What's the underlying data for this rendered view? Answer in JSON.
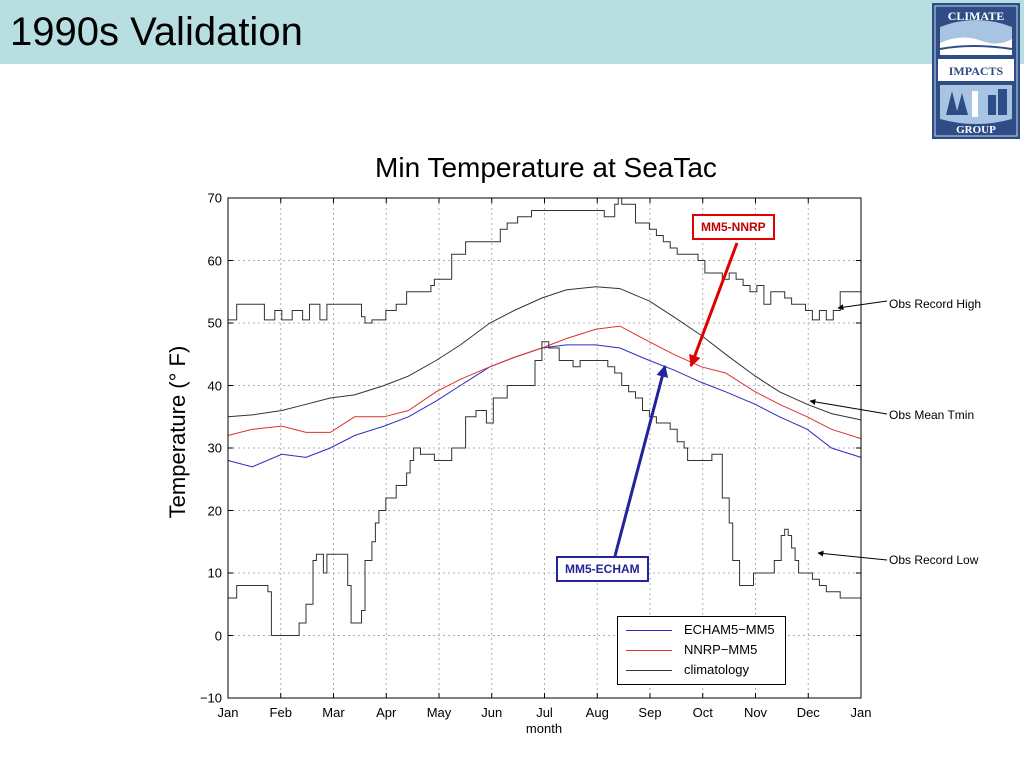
{
  "slide": {
    "title": "1990s Validation"
  },
  "logo": {
    "top_text": "CLIMATE",
    "mid_text": "IMPACTS",
    "bottom_text": "GROUP"
  },
  "chart_data": {
    "type": "line",
    "title": "Min Temperature at SeaTac",
    "xlabel": "month",
    "ylabel": "Temperature (°  F)",
    "x_ticks": [
      "Jan",
      "Feb",
      "Mar",
      "Apr",
      "May",
      "Jun",
      "Jul",
      "Aug",
      "Sep",
      "Oct",
      "Nov",
      "Dec",
      "Jan"
    ],
    "y_ticks": [
      "70",
      "60",
      "50",
      "40",
      "30",
      "20",
      "10",
      "0",
      "−10"
    ],
    "ylim": [
      -10,
      70
    ],
    "xlim": [
      1,
      366
    ],
    "grid": true,
    "legend_position": "bottom-right",
    "series": [
      {
        "name": "ECHAM5−MM5",
        "color": "#2c2cc0",
        "x": [
          1,
          15,
          32,
          46,
          60,
          74,
          91,
          105,
          121,
          135,
          152,
          166,
          182,
          196,
          213,
          227,
          244,
          258,
          274,
          288,
          305,
          319,
          335,
          349,
          366
        ],
        "y": [
          28,
          27,
          29,
          28.5,
          30,
          32,
          33.5,
          35,
          37.5,
          40,
          43,
          44.5,
          46,
          46.5,
          46.5,
          46,
          44,
          42.5,
          40.5,
          39,
          37,
          35,
          33,
          30,
          28.5
        ]
      },
      {
        "name": "NNRP−MM5",
        "color": "#e03030",
        "x": [
          1,
          15,
          32,
          46,
          60,
          74,
          91,
          105,
          121,
          135,
          152,
          166,
          182,
          196,
          213,
          227,
          244,
          258,
          274,
          288,
          305,
          319,
          335,
          349,
          366
        ],
        "y": [
          32,
          33,
          33.5,
          32.5,
          32.5,
          35,
          35,
          36,
          39,
          41,
          43,
          44.5,
          46,
          47.5,
          49,
          49.5,
          47,
          45,
          43,
          42,
          39,
          37,
          35,
          33,
          31.5
        ]
      },
      {
        "name": "climatology",
        "color": "#333333",
        "x": [
          1,
          15,
          32,
          46,
          60,
          74,
          91,
          105,
          121,
          135,
          152,
          166,
          182,
          196,
          213,
          227,
          244,
          258,
          274,
          288,
          305,
          319,
          335,
          349,
          366
        ],
        "y": [
          35,
          35.3,
          36,
          37,
          38,
          38.5,
          40,
          41.5,
          44,
          46.5,
          50,
          52,
          54,
          55.3,
          55.8,
          55.5,
          53.5,
          51,
          48,
          45,
          41.5,
          39,
          37,
          35.5,
          34.5
        ]
      },
      {
        "name": "Obs Record High",
        "color": "#333333",
        "x": [
          1,
          6,
          12,
          22,
          24,
          28,
          32,
          38,
          44,
          48,
          54,
          58,
          74,
          78,
          80,
          84,
          92,
          98,
          104,
          108,
          118,
          120,
          130,
          134,
          138,
          140,
          158,
          162,
          168,
          172,
          176,
          180,
          184,
          200,
          218,
          224,
          226,
          228,
          236,
          240,
          244,
          248,
          252,
          256,
          260,
          264,
          268,
          272,
          276,
          286,
          290,
          294,
          298,
          302,
          306,
          310,
          314,
          318,
          322,
          326,
          330,
          334,
          338,
          342,
          346,
          350,
          354,
          358,
          366
        ],
        "y": [
          50.5,
          53,
          53,
          50.5,
          50.5,
          52,
          50.5,
          52,
          50.5,
          53,
          50.5,
          53,
          53,
          51,
          50,
          50.5,
          52,
          53,
          55,
          55,
          56,
          57,
          61,
          61,
          63,
          63,
          65,
          66,
          67,
          67,
          68,
          68,
          68,
          68,
          67,
          69,
          70,
          69,
          66,
          66,
          65,
          64,
          63,
          62,
          61,
          61,
          61,
          60,
          58,
          57,
          58,
          57,
          56,
          55,
          56,
          53,
          55,
          55,
          54,
          53,
          53,
          52,
          50.5,
          52,
          50.5,
          52,
          55,
          55,
          55
        ]
      },
      {
        "name": "Obs Record Low",
        "color": "#333333",
        "x": [
          1,
          4,
          6,
          12,
          20,
          24,
          26,
          28,
          36,
          38,
          42,
          46,
          50,
          52,
          54,
          56,
          58,
          64,
          68,
          70,
          72,
          74,
          76,
          78,
          80,
          84,
          86,
          88,
          90,
          92,
          98,
          100,
          104,
          106,
          108,
          112,
          116,
          120,
          126,
          130,
          134,
          138,
          140,
          144,
          150,
          154,
          158,
          162,
          166,
          172,
          178,
          182,
          186,
          192,
          196,
          200,
          204,
          208,
          212,
          216,
          220,
          224,
          228,
          232,
          236,
          240,
          244,
          248,
          252,
          256,
          260,
          264,
          266,
          270,
          274,
          280,
          286,
          290,
          292,
          296,
          300,
          304,
          308,
          312,
          316,
          320,
          322,
          324,
          326,
          328,
          330,
          334,
          338,
          342,
          346,
          350,
          354,
          358,
          366
        ],
        "y": [
          6,
          6,
          8,
          8,
          8,
          7,
          0,
          0,
          0,
          0,
          2,
          5,
          12,
          13,
          13,
          10,
          13,
          13,
          13,
          8,
          2,
          2,
          2,
          4,
          12,
          15,
          18,
          20,
          20,
          22,
          24,
          24,
          26,
          28,
          30,
          29,
          29,
          28,
          28,
          30,
          30,
          35,
          35,
          36,
          34,
          38,
          38,
          40,
          40,
          40,
          44,
          47,
          46,
          44,
          44,
          43,
          44,
          44,
          44,
          44,
          43,
          42,
          40,
          39,
          38,
          36,
          35,
          34,
          34,
          33,
          31,
          30,
          28,
          28,
          28,
          29,
          22,
          18,
          12,
          8,
          8,
          10,
          10,
          10,
          12,
          16,
          17,
          16,
          14,
          12,
          10,
          10,
          9,
          8,
          7,
          7,
          6,
          6,
          6
        ]
      }
    ],
    "annotations": {
      "mm5_nnrp": "MM5-NNRP",
      "mm5_echam": "MM5-ECHAM",
      "obs_record_high": "Obs Record High",
      "obs_mean_tmin": "Obs Mean Tmin",
      "obs_record_low": "Obs Record Low"
    }
  }
}
